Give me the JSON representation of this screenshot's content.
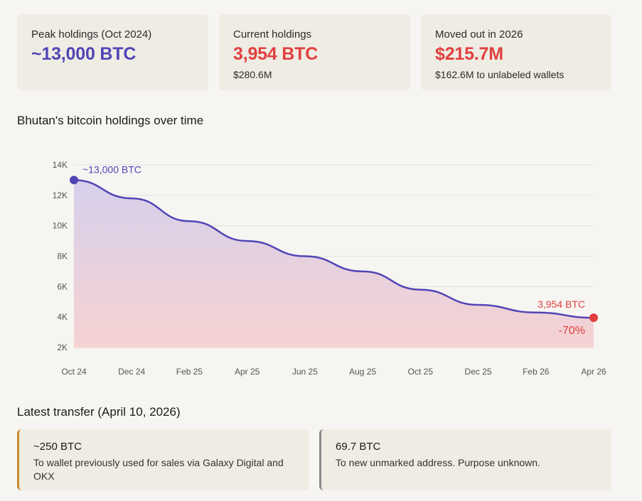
{
  "stats": [
    {
      "label": "Peak holdings (Oct 2024)",
      "value": "~13,000 BTC",
      "sub": "",
      "color": "#5145b5"
    },
    {
      "label": "Current holdings",
      "value": "3,954 BTC",
      "sub": "$280.6M",
      "color": "#e0403e"
    },
    {
      "label": "Moved out in 2026",
      "value": "$215.7M",
      "sub": "$162.6M to unlabeled wallets",
      "color": "#e0403e"
    }
  ],
  "chart_title": "Bhutan's bitcoin holdings over time",
  "chart_data": {
    "type": "area",
    "x": [
      "Oct 24",
      "Dec 24",
      "Feb 25",
      "Apr 25",
      "Jun 25",
      "Aug 25",
      "Oct 25",
      "Dec 25",
      "Feb 26",
      "Apr 26"
    ],
    "y": [
      13000,
      11800,
      10300,
      9000,
      8000,
      7000,
      5800,
      4800,
      4300,
      3954
    ],
    "ylim": [
      2000,
      14000
    ],
    "yticks": [
      "2K",
      "4K",
      "6K",
      "8K",
      "10K",
      "12K",
      "14K"
    ],
    "grid": true,
    "line_color": "#5145b5",
    "annotations": {
      "start_label": "~13,000 BTC",
      "end_label": "3,954 BTC",
      "change_label": "-70%"
    }
  },
  "transfer_title": "Latest transfer (April 10, 2026)",
  "transfers": [
    {
      "amount": "~250 BTC",
      "description": "To wallet previously used for sales via Galaxy Digital and OKX",
      "accent": "#c98a2e"
    },
    {
      "amount": "69.7 BTC",
      "description": "To new unmarked address. Purpose unknown.",
      "accent": "#8a8a8a"
    }
  ]
}
